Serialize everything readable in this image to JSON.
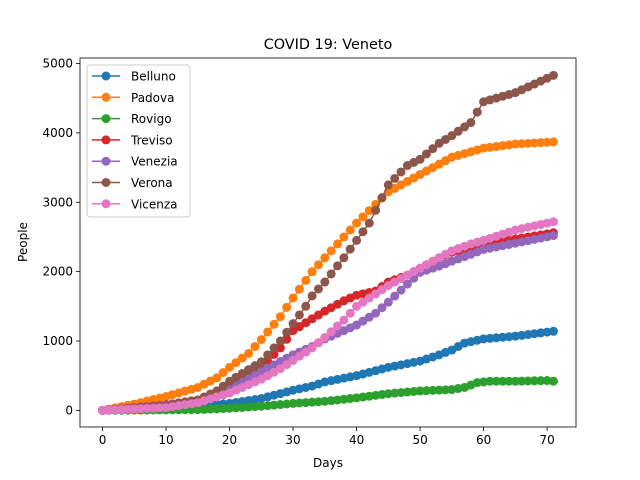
{
  "chart_data": {
    "type": "line",
    "title": "COVID 19: Veneto",
    "xlabel": "Days",
    "ylabel": "People",
    "xlim": [
      -3.55,
      74.55
    ],
    "ylim": [
      -240,
      5080
    ],
    "xticks": [
      0,
      10,
      20,
      30,
      40,
      50,
      60,
      70
    ],
    "yticks": [
      0,
      1000,
      2000,
      3000,
      4000,
      5000
    ],
    "grid": false,
    "legend": "top-left",
    "series": [
      {
        "name": "Belluno",
        "color": "#1f77b4",
        "anchors": [
          [
            0,
            0
          ],
          [
            10,
            40
          ],
          [
            15,
            60
          ],
          [
            20,
            100
          ],
          [
            25,
            170
          ],
          [
            30,
            290
          ],
          [
            33,
            350
          ],
          [
            35,
            410
          ],
          [
            40,
            500
          ],
          [
            45,
            620
          ],
          [
            50,
            710
          ],
          [
            53,
            800
          ],
          [
            55,
            870
          ],
          [
            57,
            970
          ],
          [
            60,
            1030
          ],
          [
            65,
            1070
          ],
          [
            71,
            1140
          ]
        ]
      },
      {
        "name": "Padova",
        "color": "#ff7f0e",
        "anchors": [
          [
            0,
            0
          ],
          [
            5,
            90
          ],
          [
            10,
            200
          ],
          [
            15,
            330
          ],
          [
            18,
            470
          ],
          [
            20,
            620
          ],
          [
            23,
            820
          ],
          [
            25,
            1020
          ],
          [
            28,
            1350
          ],
          [
            30,
            1620
          ],
          [
            33,
            2000
          ],
          [
            35,
            2200
          ],
          [
            38,
            2500
          ],
          [
            40,
            2700
          ],
          [
            45,
            3150
          ],
          [
            50,
            3400
          ],
          [
            55,
            3650
          ],
          [
            60,
            3780
          ],
          [
            65,
            3840
          ],
          [
            71,
            3870
          ]
        ]
      },
      {
        "name": "Rovigo",
        "color": "#2ca02c",
        "anchors": [
          [
            0,
            0
          ],
          [
            15,
            10
          ],
          [
            20,
            30
          ],
          [
            25,
            60
          ],
          [
            30,
            100
          ],
          [
            35,
            130
          ],
          [
            40,
            180
          ],
          [
            45,
            240
          ],
          [
            50,
            280
          ],
          [
            55,
            300
          ],
          [
            57,
            330
          ],
          [
            59,
            400
          ],
          [
            61,
            420
          ],
          [
            65,
            420
          ],
          [
            70,
            430
          ],
          [
            71,
            420
          ]
        ]
      },
      {
        "name": "Treviso",
        "color": "#d62728",
        "anchors": [
          [
            0,
            0
          ],
          [
            10,
            80
          ],
          [
            15,
            150
          ],
          [
            20,
            330
          ],
          [
            23,
            480
          ],
          [
            25,
            620
          ],
          [
            28,
            900
          ],
          [
            30,
            1150
          ],
          [
            33,
            1320
          ],
          [
            35,
            1430
          ],
          [
            38,
            1580
          ],
          [
            40,
            1660
          ],
          [
            43,
            1720
          ],
          [
            45,
            1850
          ],
          [
            48,
            1950
          ],
          [
            50,
            2050
          ],
          [
            53,
            2200
          ],
          [
            55,
            2280
          ],
          [
            60,
            2380
          ],
          [
            65,
            2470
          ],
          [
            71,
            2560
          ]
        ]
      },
      {
        "name": "Venezia",
        "color": "#9467bd",
        "anchors": [
          [
            0,
            0
          ],
          [
            10,
            70
          ],
          [
            15,
            130
          ],
          [
            20,
            300
          ],
          [
            25,
            560
          ],
          [
            30,
            800
          ],
          [
            33,
            920
          ],
          [
            35,
            1030
          ],
          [
            38,
            1150
          ],
          [
            40,
            1230
          ],
          [
            43,
            1400
          ],
          [
            45,
            1560
          ],
          [
            48,
            1820
          ],
          [
            50,
            1990
          ],
          [
            53,
            2080
          ],
          [
            55,
            2150
          ],
          [
            58,
            2250
          ],
          [
            60,
            2320
          ],
          [
            65,
            2410
          ],
          [
            71,
            2520
          ]
        ]
      },
      {
        "name": "Verona",
        "color": "#8c564b",
        "anchors": [
          [
            0,
            0
          ],
          [
            10,
            60
          ],
          [
            15,
            150
          ],
          [
            18,
            280
          ],
          [
            20,
            420
          ],
          [
            25,
            700
          ],
          [
            28,
            1000
          ],
          [
            30,
            1250
          ],
          [
            32,
            1500
          ],
          [
            33,
            1650
          ],
          [
            35,
            1850
          ],
          [
            38,
            2200
          ],
          [
            40,
            2450
          ],
          [
            42,
            2700
          ],
          [
            45,
            3250
          ],
          [
            48,
            3530
          ],
          [
            50,
            3620
          ],
          [
            53,
            3850
          ],
          [
            55,
            3960
          ],
          [
            58,
            4150
          ],
          [
            60,
            4450
          ],
          [
            65,
            4580
          ],
          [
            71,
            4830
          ]
        ]
      },
      {
        "name": "Vicenza",
        "color": "#e377c2",
        "anchors": [
          [
            0,
            0
          ],
          [
            10,
            40
          ],
          [
            15,
            110
          ],
          [
            20,
            250
          ],
          [
            25,
            450
          ],
          [
            28,
            600
          ],
          [
            30,
            720
          ],
          [
            33,
            900
          ],
          [
            35,
            1050
          ],
          [
            38,
            1300
          ],
          [
            40,
            1500
          ],
          [
            43,
            1680
          ],
          [
            45,
            1800
          ],
          [
            48,
            1950
          ],
          [
            50,
            2050
          ],
          [
            53,
            2200
          ],
          [
            55,
            2300
          ],
          [
            58,
            2400
          ],
          [
            60,
            2450
          ],
          [
            65,
            2600
          ],
          [
            71,
            2720
          ]
        ]
      }
    ]
  }
}
